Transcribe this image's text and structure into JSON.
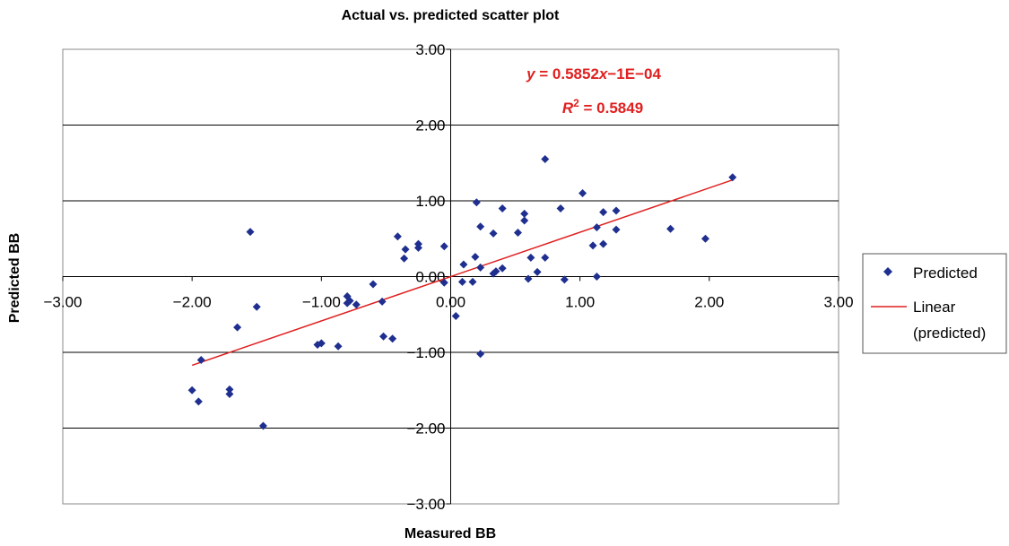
{
  "chart_data": {
    "type": "scatter",
    "title": "Actual vs. predicted scatter plot",
    "xlabel": "Measured BB",
    "ylabel": "Predicted BB",
    "xlim": [
      -3,
      3
    ],
    "ylim": [
      -3,
      3
    ],
    "x_ticks": [
      "−3.00",
      "−2.00",
      "−1.00",
      "0.00",
      "1.00",
      "2.00",
      "3.00"
    ],
    "y_ticks": [
      "3.00",
      "2.00",
      "1.00",
      "0.00",
      "−1.00",
      "−2.00",
      "−3.00"
    ],
    "grid": "horizontal",
    "legend_position": "right",
    "colors": {
      "points": "#1f2f8f",
      "trend": "#e02020",
      "equation": "#e02020"
    },
    "series": [
      {
        "name": "Predicted",
        "points": [
          [
            -2.0,
            -1.5
          ],
          [
            -1.95,
            -1.65
          ],
          [
            -1.93,
            -1.1
          ],
          [
            -1.71,
            -1.49
          ],
          [
            -1.71,
            -1.55
          ],
          [
            -1.65,
            -0.67
          ],
          [
            -1.55,
            0.59
          ],
          [
            -1.5,
            -0.4
          ],
          [
            -1.45,
            -1.97
          ],
          [
            -1.03,
            -0.9
          ],
          [
            -1.0,
            -0.88
          ],
          [
            -0.87,
            -0.92
          ],
          [
            -0.8,
            -0.26
          ],
          [
            -0.8,
            -0.35
          ],
          [
            -0.78,
            -0.32
          ],
          [
            -0.73,
            -0.37
          ],
          [
            -0.6,
            -0.1
          ],
          [
            -0.53,
            -0.33
          ],
          [
            -0.52,
            -0.79
          ],
          [
            -0.45,
            -0.82
          ],
          [
            -0.41,
            0.53
          ],
          [
            -0.36,
            0.24
          ],
          [
            -0.35,
            0.36
          ],
          [
            -0.25,
            0.38
          ],
          [
            -0.25,
            0.43
          ],
          [
            -0.05,
            0.4
          ],
          [
            -0.05,
            -0.08
          ],
          [
            0.04,
            -0.52
          ],
          [
            0.09,
            -0.07
          ],
          [
            0.1,
            0.16
          ],
          [
            0.17,
            -0.07
          ],
          [
            0.19,
            0.26
          ],
          [
            0.2,
            0.98
          ],
          [
            0.23,
            0.12
          ],
          [
            0.23,
            0.66
          ],
          [
            0.23,
            -1.02
          ],
          [
            0.33,
            0.04
          ],
          [
            0.33,
            0.57
          ],
          [
            0.35,
            0.07
          ],
          [
            0.4,
            0.11
          ],
          [
            0.4,
            0.9
          ],
          [
            0.52,
            0.58
          ],
          [
            0.57,
            0.74
          ],
          [
            0.57,
            0.83
          ],
          [
            0.6,
            -0.03
          ],
          [
            0.62,
            0.25
          ],
          [
            0.67,
            0.06
          ],
          [
            0.73,
            1.55
          ],
          [
            0.73,
            0.25
          ],
          [
            0.85,
            0.9
          ],
          [
            0.88,
            -0.04
          ],
          [
            1.02,
            1.1
          ],
          [
            1.1,
            0.41
          ],
          [
            1.13,
            0.0
          ],
          [
            1.13,
            0.65
          ],
          [
            1.18,
            0.43
          ],
          [
            1.18,
            0.85
          ],
          [
            1.28,
            0.62
          ],
          [
            1.28,
            0.87
          ],
          [
            1.7,
            0.63
          ],
          [
            1.97,
            0.5
          ],
          [
            2.18,
            1.31
          ]
        ]
      },
      {
        "name": "Linear (predicted)",
        "slope": 0.5852,
        "intercept": -0.0001,
        "x_range": [
          -2.0,
          2.18
        ]
      }
    ],
    "annotations": {
      "equation": "y = 0.5852x−1E−04",
      "r2": "R2 = 0.5849"
    },
    "legend": {
      "predicted_label": "Predicted",
      "linear_label_line1": "Linear",
      "linear_label_line2": "(predicted)"
    }
  }
}
